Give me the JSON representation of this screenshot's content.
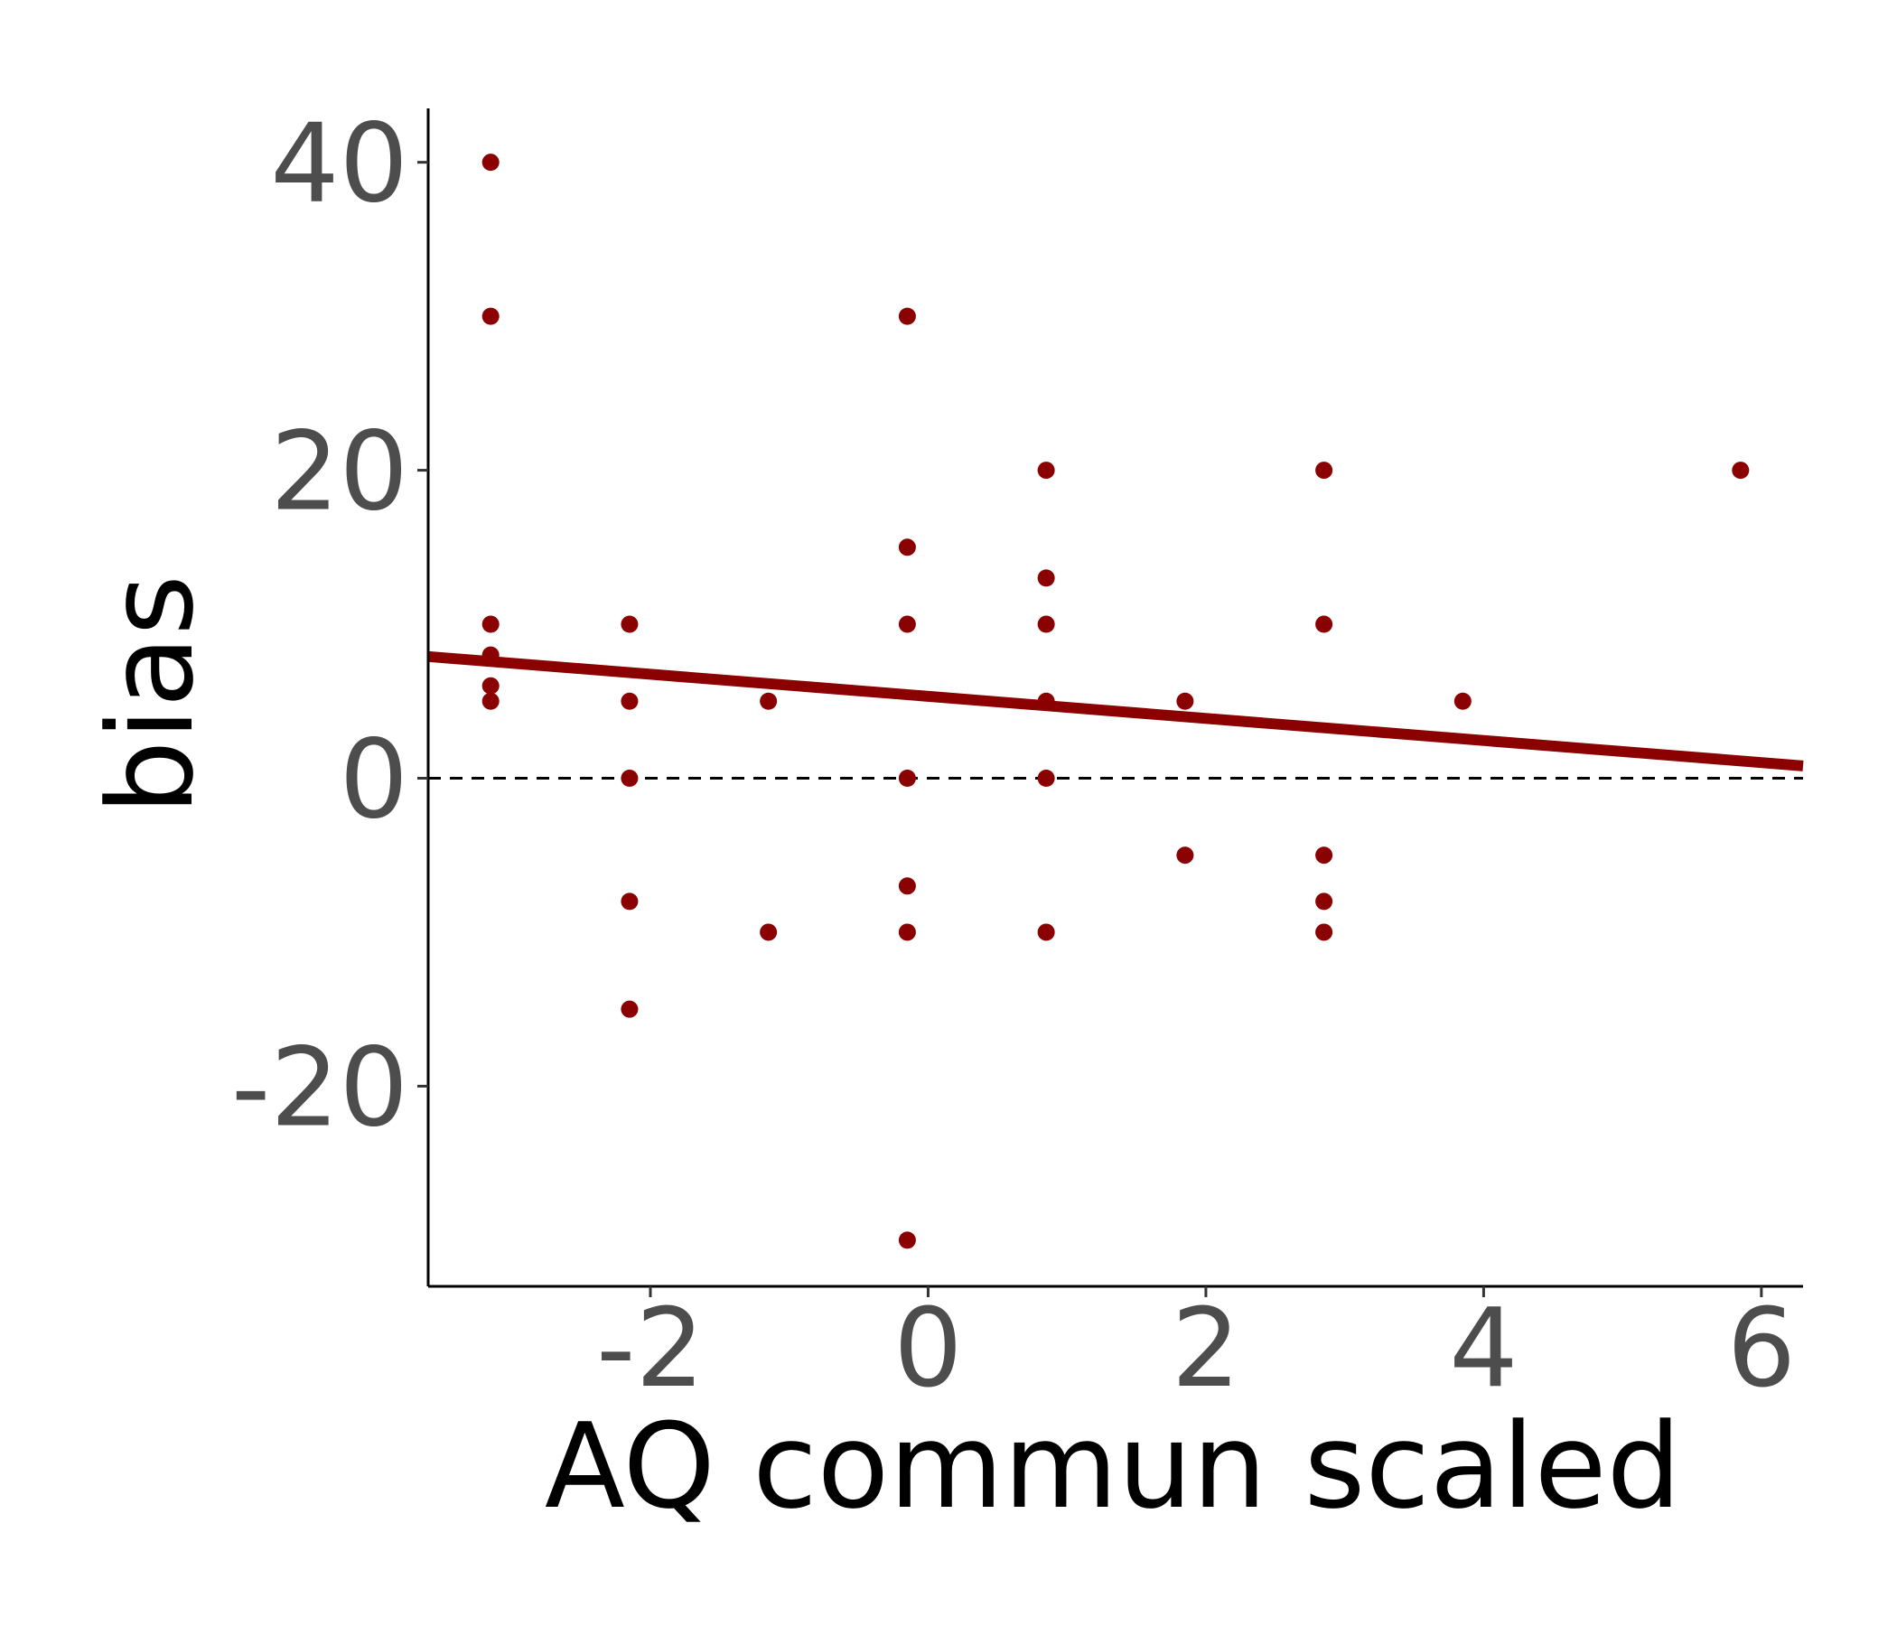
{
  "chart_data": {
    "type": "scatter",
    "title": "",
    "xlabel": "AQ commun scaled",
    "ylabel": "bias",
    "xlim": [
      -3.6,
      6.3
    ],
    "ylim": [
      -33,
      43.5
    ],
    "x_ticks": [
      -2,
      0,
      2,
      4,
      6
    ],
    "y_ticks": [
      -20,
      0,
      20,
      40
    ],
    "x_tick_labels": [
      "-2",
      "0",
      "2",
      "4",
      "6"
    ],
    "y_tick_labels": [
      "-20",
      "0",
      "20",
      "40"
    ],
    "grid": false,
    "legend": "none",
    "reference_line": {
      "y": 0,
      "style": "dashed",
      "color": "#000000"
    },
    "fit_line": {
      "x": [
        -3.6,
        6.3
      ],
      "y": [
        7.9,
        0.8
      ],
      "color": "#8b0000"
    },
    "point_color": "#8b0000",
    "points": [
      {
        "x": -3.15,
        "y": 40
      },
      {
        "x": -3.15,
        "y": 30
      },
      {
        "x": -3.15,
        "y": 10
      },
      {
        "x": -3.15,
        "y": 8
      },
      {
        "x": -3.15,
        "y": 6
      },
      {
        "x": -3.15,
        "y": 5
      },
      {
        "x": -2.15,
        "y": 10
      },
      {
        "x": -2.15,
        "y": 5
      },
      {
        "x": -2.15,
        "y": 0
      },
      {
        "x": -2.15,
        "y": -8
      },
      {
        "x": -2.15,
        "y": -15
      },
      {
        "x": -1.15,
        "y": 5
      },
      {
        "x": -1.15,
        "y": -10
      },
      {
        "x": -0.15,
        "y": 30
      },
      {
        "x": -0.15,
        "y": 15
      },
      {
        "x": -0.15,
        "y": 10
      },
      {
        "x": -0.15,
        "y": 0
      },
      {
        "x": -0.15,
        "y": -7
      },
      {
        "x": -0.15,
        "y": -10
      },
      {
        "x": -0.15,
        "y": -30
      },
      {
        "x": 0.85,
        "y": 20
      },
      {
        "x": 0.85,
        "y": 13
      },
      {
        "x": 0.85,
        "y": 10
      },
      {
        "x": 0.85,
        "y": 5
      },
      {
        "x": 0.85,
        "y": 0
      },
      {
        "x": 0.85,
        "y": -10
      },
      {
        "x": 1.85,
        "y": 5
      },
      {
        "x": 1.85,
        "y": -5
      },
      {
        "x": 2.85,
        "y": 20
      },
      {
        "x": 2.85,
        "y": 10
      },
      {
        "x": 2.85,
        "y": -5
      },
      {
        "x": 2.85,
        "y": -8
      },
      {
        "x": 2.85,
        "y": -10
      },
      {
        "x": 3.85,
        "y": 5
      },
      {
        "x": 5.85,
        "y": 20
      }
    ]
  }
}
